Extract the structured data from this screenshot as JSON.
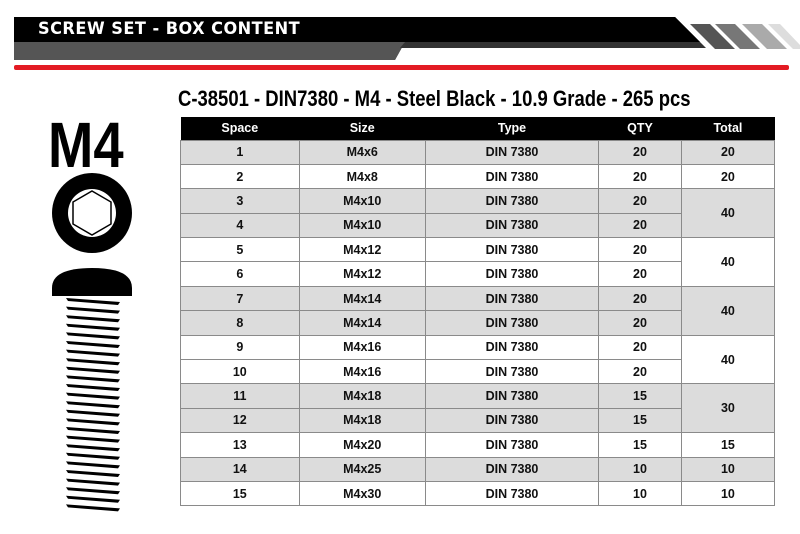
{
  "banner": {
    "title": "SCREW SET - BOX CONTENT",
    "accent_color": "#e31b23"
  },
  "subtitle": "C-38501 - DIN7380 - M4 - Steel Black - 10.9 Grade - 265 pcs",
  "size_label": "M4",
  "table": {
    "headers": [
      "Space",
      "Size",
      "Type",
      "QTY",
      "Total"
    ],
    "rows": [
      {
        "space": "1",
        "size": "M4x6",
        "type": "DIN 7380",
        "qty": "20",
        "total": "20",
        "span": 1
      },
      {
        "space": "2",
        "size": "M4x8",
        "type": "DIN 7380",
        "qty": "20",
        "total": "20",
        "span": 1
      },
      {
        "space": "3",
        "size": "M4x10",
        "type": "DIN 7380",
        "qty": "20",
        "total": "40",
        "span": 2
      },
      {
        "space": "4",
        "size": "M4x10",
        "type": "DIN 7380",
        "qty": "20",
        "total": null,
        "span": 0
      },
      {
        "space": "5",
        "size": "M4x12",
        "type": "DIN 7380",
        "qty": "20",
        "total": "40",
        "span": 2
      },
      {
        "space": "6",
        "size": "M4x12",
        "type": "DIN 7380",
        "qty": "20",
        "total": null,
        "span": 0
      },
      {
        "space": "7",
        "size": "M4x14",
        "type": "DIN 7380",
        "qty": "20",
        "total": "40",
        "span": 2
      },
      {
        "space": "8",
        "size": "M4x14",
        "type": "DIN 7380",
        "qty": "20",
        "total": null,
        "span": 0
      },
      {
        "space": "9",
        "size": "M4x16",
        "type": "DIN 7380",
        "qty": "20",
        "total": "40",
        "span": 2
      },
      {
        "space": "10",
        "size": "M4x16",
        "type": "DIN 7380",
        "qty": "20",
        "total": null,
        "span": 0
      },
      {
        "space": "11",
        "size": "M4x18",
        "type": "DIN 7380",
        "qty": "15",
        "total": "30",
        "span": 2
      },
      {
        "space": "12",
        "size": "M4x18",
        "type": "DIN 7380",
        "qty": "15",
        "total": null,
        "span": 0
      },
      {
        "space": "13",
        "size": "M4x20",
        "type": "DIN 7380",
        "qty": "15",
        "total": "15",
        "span": 1
      },
      {
        "space": "14",
        "size": "M4x25",
        "type": "DIN 7380",
        "qty": "10",
        "total": "10",
        "span": 1
      },
      {
        "space": "15",
        "size": "M4x30",
        "type": "DIN 7380",
        "qty": "10",
        "total": "10",
        "span": 1
      }
    ]
  }
}
